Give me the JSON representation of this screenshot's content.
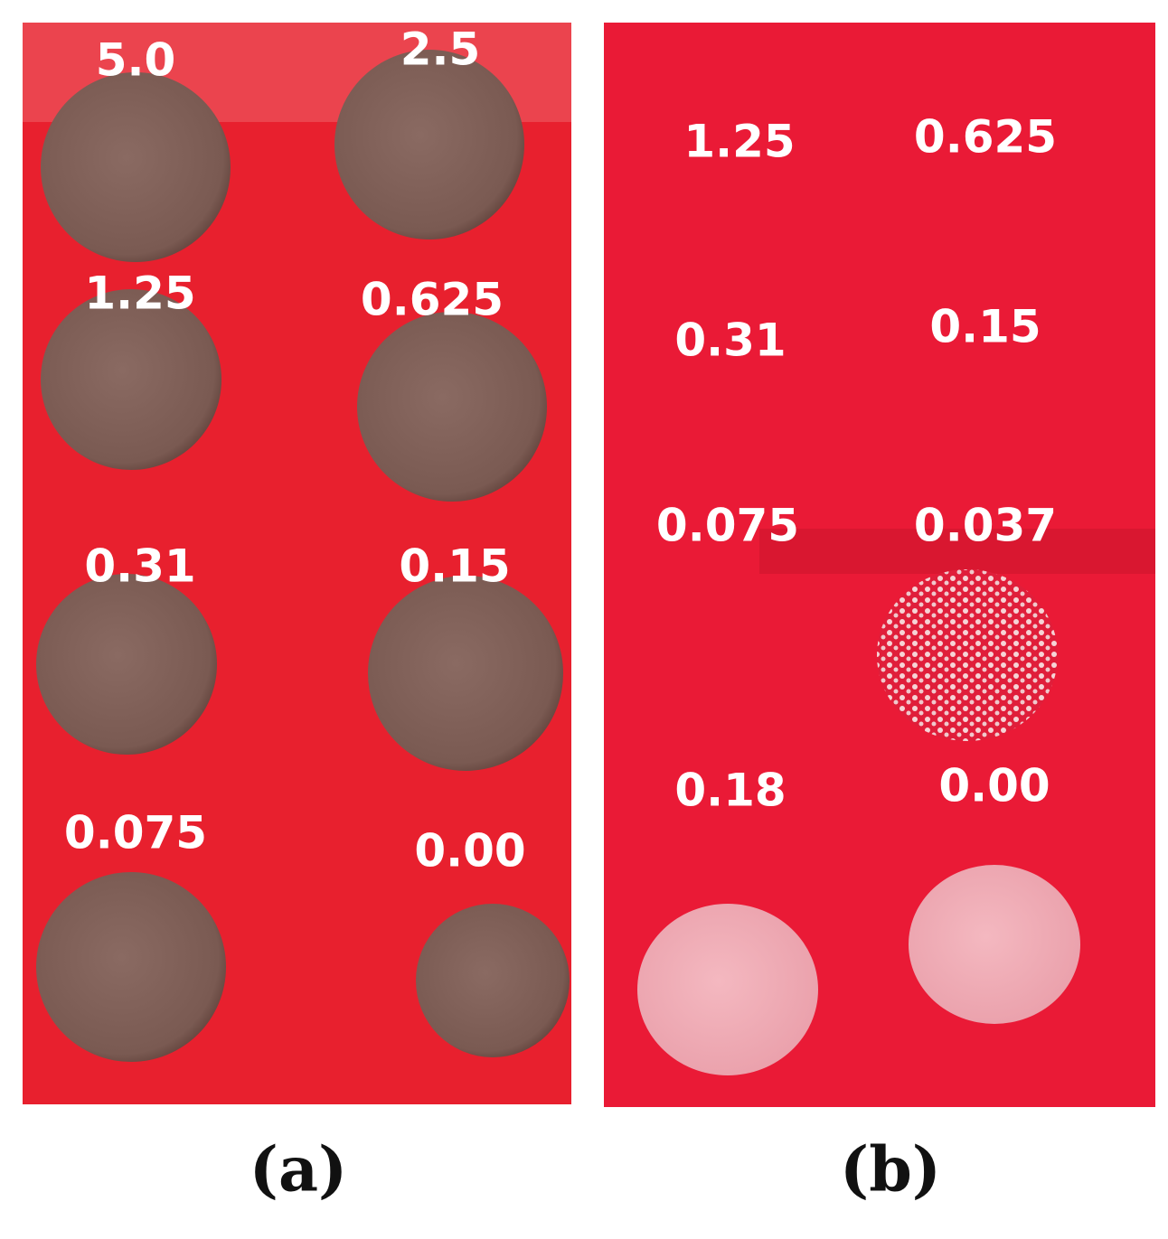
{
  "panels": [
    {
      "caption": "(a)",
      "labels": [
        "5.0",
        "2.5",
        "1.25",
        "0.625",
        "0.31",
        "0.15",
        "0.075",
        "0.00"
      ]
    },
    {
      "caption": "(b)",
      "labels": [
        "1.25",
        "0.625",
        "0.31",
        "0.15",
        "0.075",
        "0.037",
        "0.18",
        "0.00"
      ]
    }
  ]
}
